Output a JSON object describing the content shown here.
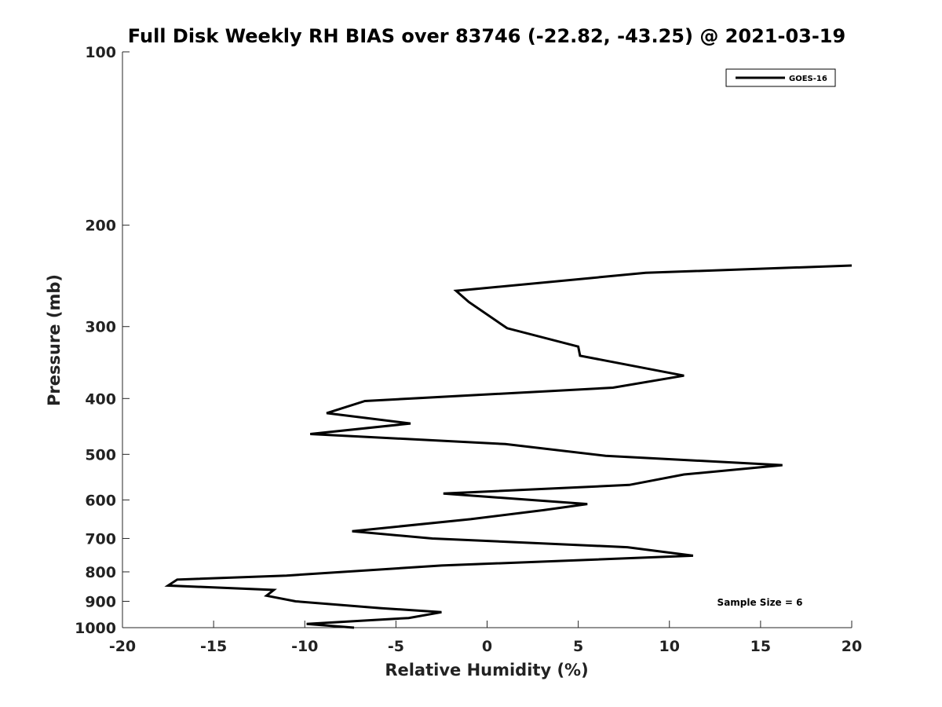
{
  "chart_data": {
    "type": "line",
    "title": "Full Disk Weekly RH BIAS over 83746 (-22.82, -43.25) @ 2021-03-19",
    "xlabel": "Relative Humidity (%)",
    "ylabel": "Pressure (mb)",
    "xlim": [
      -20,
      20
    ],
    "ylim": [
      100,
      1000
    ],
    "y_scale": "log",
    "y_inverted": true,
    "x_ticks": [
      -20,
      -15,
      -10,
      -5,
      0,
      5,
      10,
      15,
      20
    ],
    "y_ticks": [
      100,
      200,
      300,
      400,
      500,
      600,
      700,
      800,
      900,
      1000
    ],
    "grid": false,
    "legend_position": "top-right",
    "series": [
      {
        "name": "GOES-16",
        "color": "#000000",
        "x": [
          20.0,
          8.7,
          -1.7,
          -1.0,
          1.1,
          5.0,
          5.1,
          10.8,
          6.9,
          -6.7,
          -8.8,
          -4.2,
          -9.7,
          1.0,
          6.5,
          16.2,
          10.8,
          7.8,
          -2.4,
          5.5,
          3.1,
          -0.9,
          -7.4,
          -3.0,
          7.7,
          11.3,
          -2.5,
          -11.0,
          -17.0,
          -17.5,
          -11.7,
          -12.1,
          -10.5,
          -5.8,
          -2.5,
          -4.3,
          -9.9,
          -7.3
        ],
        "y": [
          235,
          242,
          260,
          272,
          302,
          325,
          337,
          365,
          383,
          404,
          424,
          442,
          461,
          480,
          503,
          522,
          542,
          565,
          585,
          610,
          625,
          648,
          680,
          700,
          725,
          750,
          780,
          812,
          825,
          845,
          860,
          880,
          900,
          925,
          940,
          962,
          985,
          1000
        ]
      }
    ],
    "annotations": [
      {
        "text": "Sample Size = 6",
        "position": "bottom-right"
      }
    ]
  }
}
